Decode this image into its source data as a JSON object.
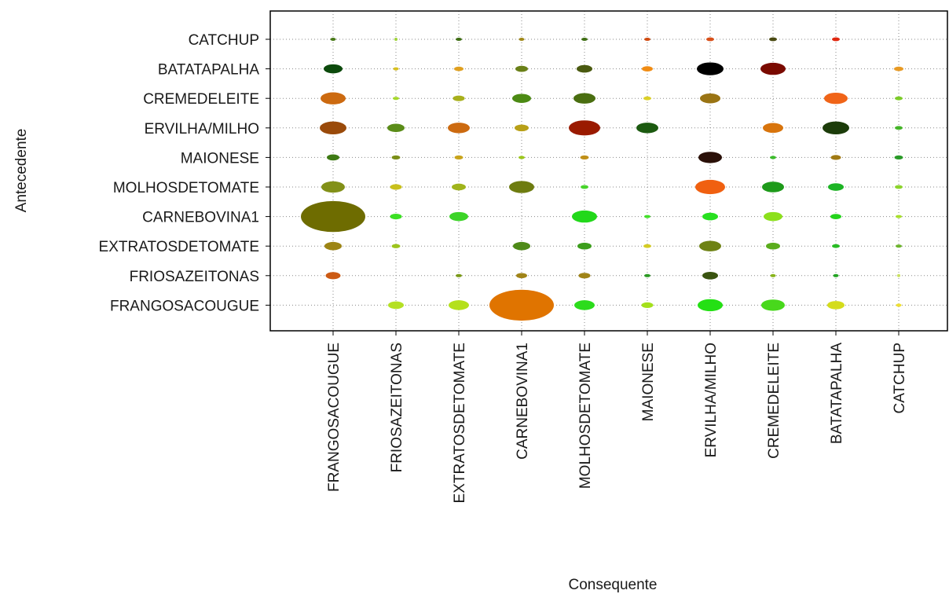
{
  "chart_data": {
    "type": "scatter",
    "subtype": "bubble-matrix",
    "title": "",
    "xlabel": "Consequente",
    "ylabel": "Antecedente",
    "x_categories": [
      "FRANGOSACOUGUE",
      "FRIOSAZEITONAS",
      "EXTRATOSDETOMATE",
      "CARNEBOVINA1",
      "MOLHOSDETOMATE",
      "MAIONESE",
      "ERVILHA/MILHO",
      "CREMEDELEITE",
      "BATATAPALHA",
      "CATCHUP"
    ],
    "y_categories": [
      "CATCHUP",
      "BATATAPALHA",
      "CREMEDELEITE",
      "ERVILHA/MILHO",
      "MAIONESE",
      "MOLHOSDETOMATE",
      "CARNEBOVINA1",
      "EXTRATOSDETOMATE",
      "FRIOSAZEITONAS",
      "FRANGOSACOUGUE"
    ],
    "grid": true,
    "bubbles": [
      {
        "y": "CATCHUP",
        "x": "FRANGOSACOUGUE",
        "size": 7,
        "color": "#4a7a1a"
      },
      {
        "y": "CATCHUP",
        "x": "FRIOSAZEITONAS",
        "size": 4,
        "color": "#9fd23a"
      },
      {
        "y": "CATCHUP",
        "x": "EXTRATOSDETOMATE",
        "size": 8,
        "color": "#3f6e14"
      },
      {
        "y": "CATCHUP",
        "x": "CARNEBOVINA1",
        "size": 7,
        "color": "#a08818"
      },
      {
        "y": "CATCHUP",
        "x": "MOLHOSDETOMATE",
        "size": 8,
        "color": "#3f6e14"
      },
      {
        "y": "CATCHUP",
        "x": "MAIONESE",
        "size": 8,
        "color": "#d04a10"
      },
      {
        "y": "CATCHUP",
        "x": "ERVILHA/MILHO",
        "size": 10,
        "color": "#d8501a"
      },
      {
        "y": "CATCHUP",
        "x": "CREMEDELEITE",
        "size": 10,
        "color": "#4a4a12"
      },
      {
        "y": "CATCHUP",
        "x": "BATATAPALHA",
        "size": 10,
        "color": "#e02810"
      },
      {
        "y": "BATATAPALHA",
        "x": "FRANGOSACOUGUE",
        "size": 24,
        "color": "#0c4a0c"
      },
      {
        "y": "BATATAPALHA",
        "x": "FRIOSAZEITONAS",
        "size": 7,
        "color": "#d8c020"
      },
      {
        "y": "BATATAPALHA",
        "x": "EXTRATOSDETOMATE",
        "size": 12,
        "color": "#e0a020"
      },
      {
        "y": "BATATAPALHA",
        "x": "CARNEBOVINA1",
        "size": 16,
        "color": "#6a8018"
      },
      {
        "y": "BATATAPALHA",
        "x": "MOLHOSDETOMATE",
        "size": 20,
        "color": "#4a5a10"
      },
      {
        "y": "BATATAPALHA",
        "x": "MAIONESE",
        "size": 14,
        "color": "#f08c14"
      },
      {
        "y": "BATATAPALHA",
        "x": "ERVILHA/MILHO",
        "size": 34,
        "color": "#000000"
      },
      {
        "y": "BATATAPALHA",
        "x": "CREMEDELEITE",
        "size": 32,
        "color": "#7a0a00"
      },
      {
        "y": "BATATAPALHA",
        "x": "CATCHUP",
        "size": 12,
        "color": "#e89a24"
      },
      {
        "y": "CREMEDELEITE",
        "x": "FRANGOSACOUGUE",
        "size": 32,
        "color": "#cc6a10"
      },
      {
        "y": "CREMEDELEITE",
        "x": "FRIOSAZEITONAS",
        "size": 8,
        "color": "#a6d82a"
      },
      {
        "y": "CREMEDELEITE",
        "x": "EXTRATOSDETOMATE",
        "size": 15,
        "color": "#a8b01c"
      },
      {
        "y": "CREMEDELEITE",
        "x": "CARNEBOVINA1",
        "size": 24,
        "color": "#4c8a14"
      },
      {
        "y": "CREMEDELEITE",
        "x": "MOLHOSDETOMATE",
        "size": 28,
        "color": "#4a6e10"
      },
      {
        "y": "CREMEDELEITE",
        "x": "MAIONESE",
        "size": 10,
        "color": "#dcd028"
      },
      {
        "y": "CREMEDELEITE",
        "x": "ERVILHA/MILHO",
        "size": 26,
        "color": "#9a7414"
      },
      {
        "y": "CREMEDELEITE",
        "x": "BATATAPALHA",
        "size": 30,
        "color": "#f06418"
      },
      {
        "y": "CREMEDELEITE",
        "x": "CATCHUP",
        "size": 10,
        "color": "#7ccc28"
      },
      {
        "y": "ERVILHA/MILHO",
        "x": "FRANGOSACOUGUE",
        "size": 34,
        "color": "#9a4a0a"
      },
      {
        "y": "ERVILHA/MILHO",
        "x": "FRIOSAZEITONAS",
        "size": 22,
        "color": "#5a8c18"
      },
      {
        "y": "ERVILHA/MILHO",
        "x": "EXTRATOSDETOMATE",
        "size": 28,
        "color": "#cc6a10"
      },
      {
        "y": "ERVILHA/MILHO",
        "x": "CARNEBOVINA1",
        "size": 18,
        "color": "#b8a018"
      },
      {
        "y": "ERVILHA/MILHO",
        "x": "MOLHOSDETOMATE",
        "size": 40,
        "color": "#9a1a00"
      },
      {
        "y": "ERVILHA/MILHO",
        "x": "MAIONESE",
        "size": 28,
        "color": "#1c5a10"
      },
      {
        "y": "ERVILHA/MILHO",
        "x": "CREMEDELEITE",
        "size": 26,
        "color": "#d8740c"
      },
      {
        "y": "ERVILHA/MILHO",
        "x": "BATATAPALHA",
        "size": 34,
        "color": "#1c3c0a"
      },
      {
        "y": "ERVILHA/MILHO",
        "x": "CATCHUP",
        "size": 10,
        "color": "#44b428"
      },
      {
        "y": "MAIONESE",
        "x": "FRANGOSACOUGUE",
        "size": 16,
        "color": "#3e7a14"
      },
      {
        "y": "MAIONESE",
        "x": "FRIOSAZEITONAS",
        "size": 11,
        "color": "#7a8e18"
      },
      {
        "y": "MAIONESE",
        "x": "EXTRATOSDETOMATE",
        "size": 11,
        "color": "#c8a41c"
      },
      {
        "y": "MAIONESE",
        "x": "CARNEBOVINA1",
        "size": 8,
        "color": "#9cc81c"
      },
      {
        "y": "MAIONESE",
        "x": "MOLHOSDETOMATE",
        "size": 11,
        "color": "#c09018"
      },
      {
        "y": "MAIONESE",
        "x": "ERVILHA/MILHO",
        "size": 30,
        "color": "#2a1008"
      },
      {
        "y": "MAIONESE",
        "x": "CREMEDELEITE",
        "size": 8,
        "color": "#3cbc2c"
      },
      {
        "y": "MAIONESE",
        "x": "BATATAPALHA",
        "size": 13,
        "color": "#a07a14"
      },
      {
        "y": "MAIONESE",
        "x": "CATCHUP",
        "size": 11,
        "color": "#2a9a28"
      },
      {
        "y": "MOLHOSDETOMATE",
        "x": "FRANGOSACOUGUE",
        "size": 30,
        "color": "#829018"
      },
      {
        "y": "MOLHOSDETOMATE",
        "x": "FRIOSAZEITONAS",
        "size": 15,
        "color": "#c8c01c"
      },
      {
        "y": "MOLHOSDETOMATE",
        "x": "EXTRATOSDETOMATE",
        "size": 18,
        "color": "#a0b41c"
      },
      {
        "y": "MOLHOSDETOMATE",
        "x": "CARNEBOVINA1",
        "size": 32,
        "color": "#6e7c10"
      },
      {
        "y": "MOLHOSDETOMATE",
        "x": "MOLHOSDETOMATE",
        "size": 10,
        "color": "#48d42c"
      },
      {
        "y": "MOLHOSDETOMATE",
        "x": "ERVILHA/MILHO",
        "size": 38,
        "color": "#f06010"
      },
      {
        "y": "MOLHOSDETOMATE",
        "x": "CREMEDELEITE",
        "size": 28,
        "color": "#1e9a1a"
      },
      {
        "y": "MOLHOSDETOMATE",
        "x": "BATATAPALHA",
        "size": 20,
        "color": "#1cb424"
      },
      {
        "y": "MOLHOSDETOMATE",
        "x": "CATCHUP",
        "size": 10,
        "color": "#8cd42c"
      },
      {
        "y": "CARNEBOVINA1",
        "x": "FRANGOSACOUGUE",
        "size": 82,
        "color": "#6e6c00"
      },
      {
        "y": "CARNEBOVINA1",
        "x": "FRIOSAZEITONAS",
        "size": 15,
        "color": "#3ce024"
      },
      {
        "y": "CARNEBOVINA1",
        "x": "EXTRATOSDETOMATE",
        "size": 24,
        "color": "#3cd428"
      },
      {
        "y": "CARNEBOVINA1",
        "x": "MOLHOSDETOMATE",
        "size": 32,
        "color": "#22d81a"
      },
      {
        "y": "CARNEBOVINA1",
        "x": "MAIONESE",
        "size": 8,
        "color": "#44e02a"
      },
      {
        "y": "CARNEBOVINA1",
        "x": "ERVILHA/MILHO",
        "size": 20,
        "color": "#28e020"
      },
      {
        "y": "CARNEBOVINA1",
        "x": "CREMEDELEITE",
        "size": 24,
        "color": "#8ce01c"
      },
      {
        "y": "CARNEBOVINA1",
        "x": "BATATAPALHA",
        "size": 14,
        "color": "#24d41c"
      },
      {
        "y": "CARNEBOVINA1",
        "x": "CATCHUP",
        "size": 8,
        "color": "#a8e02c"
      },
      {
        "y": "EXTRATOSDETOMATE",
        "x": "FRANGOSACOUGUE",
        "size": 22,
        "color": "#9c8414"
      },
      {
        "y": "EXTRATOSDETOMATE",
        "x": "FRIOSAZEITONAS",
        "size": 11,
        "color": "#9cc41c"
      },
      {
        "y": "EXTRATOSDETOMATE",
        "x": "CARNEBOVINA1",
        "size": 22,
        "color": "#4e8a18"
      },
      {
        "y": "EXTRATOSDETOMATE",
        "x": "MOLHOSDETOMATE",
        "size": 18,
        "color": "#3c9e1c"
      },
      {
        "y": "EXTRATOSDETOMATE",
        "x": "MAIONESE",
        "size": 10,
        "color": "#d4cc24"
      },
      {
        "y": "EXTRATOSDETOMATE",
        "x": "ERVILHA/MILHO",
        "size": 28,
        "color": "#6e8214"
      },
      {
        "y": "EXTRATOSDETOMATE",
        "x": "CREMEDELEITE",
        "size": 18,
        "color": "#5aac1c"
      },
      {
        "y": "EXTRATOSDETOMATE",
        "x": "BATATAPALHA",
        "size": 10,
        "color": "#28bc24"
      },
      {
        "y": "EXTRATOSDETOMATE",
        "x": "CATCHUP",
        "size": 8,
        "color": "#6cb42c"
      },
      {
        "y": "FRIOSAZEITONAS",
        "x": "FRANGOSACOUGUE",
        "size": 19,
        "color": "#cc5a14"
      },
      {
        "y": "FRIOSAZEITONAS",
        "x": "EXTRATOSDETOMATE",
        "size": 8,
        "color": "#7a9a18"
      },
      {
        "y": "FRIOSAZEITONAS",
        "x": "CARNEBOVINA1",
        "size": 14,
        "color": "#a08418"
      },
      {
        "y": "FRIOSAZEITONAS",
        "x": "MOLHOSDETOMATE",
        "size": 15,
        "color": "#a08418"
      },
      {
        "y": "FRIOSAZEITONAS",
        "x": "MAIONESE",
        "size": 8,
        "color": "#2c9a24"
      },
      {
        "y": "FRIOSAZEITONAS",
        "x": "ERVILHA/MILHO",
        "size": 20,
        "color": "#3a5410"
      },
      {
        "y": "FRIOSAZEITONAS",
        "x": "CREMEDELEITE",
        "size": 7,
        "color": "#88b41c"
      },
      {
        "y": "FRIOSAZEITONAS",
        "x": "BATATAPALHA",
        "size": 7,
        "color": "#24a424"
      },
      {
        "y": "FRIOSAZEITONAS",
        "x": "CATCHUP",
        "size": 4,
        "color": "#c8e060"
      },
      {
        "y": "FRANGOSACOUGUE",
        "x": "FRIOSAZEITONAS",
        "size": 20,
        "color": "#b4e024"
      },
      {
        "y": "FRANGOSACOUGUE",
        "x": "EXTRATOSDETOMATE",
        "size": 26,
        "color": "#b4e01c"
      },
      {
        "y": "FRANGOSACOUGUE",
        "x": "CARNEBOVINA1",
        "size": 82,
        "color": "#e07400"
      },
      {
        "y": "FRANGOSACOUGUE",
        "x": "MOLHOSDETOMATE",
        "size": 26,
        "color": "#2cdc1c"
      },
      {
        "y": "FRANGOSACOUGUE",
        "x": "MAIONESE",
        "size": 15,
        "color": "#a4e01c"
      },
      {
        "y": "FRANGOSACOUGUE",
        "x": "ERVILHA/MILHO",
        "size": 32,
        "color": "#24e014"
      },
      {
        "y": "FRANGOSACOUGUE",
        "x": "CREMEDELEITE",
        "size": 30,
        "color": "#48d81c"
      },
      {
        "y": "FRANGOSACOUGUE",
        "x": "BATATAPALHA",
        "size": 22,
        "color": "#d4dc1c"
      },
      {
        "y": "FRANGOSACOUGUE",
        "x": "CATCHUP",
        "size": 7,
        "color": "#f0e030"
      }
    ]
  }
}
